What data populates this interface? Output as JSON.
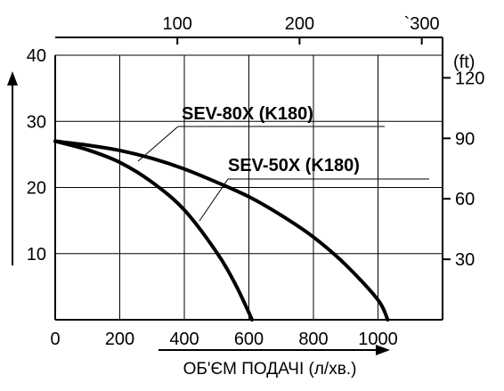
{
  "chart_data": {
    "type": "line",
    "xlabel": "ОБ'ЄМ ПОДАЧІ (л/хв.)",
    "ylabel": "",
    "x_primary": {
      "ticks": [
        0,
        200,
        400,
        600,
        800,
        1000
      ],
      "range": [
        0,
        1200
      ]
    },
    "x_secondary": {
      "ticks": [
        "100",
        "200",
        "`300"
      ],
      "tick_values_lpm": [
        378.5,
        757,
        1135.6
      ]
    },
    "y_primary": {
      "ticks": [
        10,
        20,
        30,
        40
      ],
      "range": [
        0,
        40
      ]
    },
    "y_secondary": {
      "unit": "(ft)",
      "ticks": [
        "30",
        "60",
        "90",
        "120"
      ],
      "tick_values_m": [
        9.14,
        18.29,
        27.43,
        36.58
      ]
    },
    "grid": true,
    "series": [
      {
        "name": "SEV-80X (K180)",
        "x": [
          0,
          100,
          200,
          300,
          400,
          500,
          600,
          700,
          800,
          900,
          1000,
          1030
        ],
        "y": [
          27,
          26.4,
          25.6,
          24.4,
          22.8,
          20.8,
          18.6,
          15.8,
          12.5,
          8.3,
          3,
          0
        ]
      },
      {
        "name": "SEV-50X (K180)",
        "x": [
          0,
          100,
          200,
          300,
          400,
          500,
          560,
          610
        ],
        "y": [
          27,
          25.7,
          23.8,
          20.8,
          16.6,
          10.2,
          5.2,
          0
        ]
      }
    ]
  }
}
